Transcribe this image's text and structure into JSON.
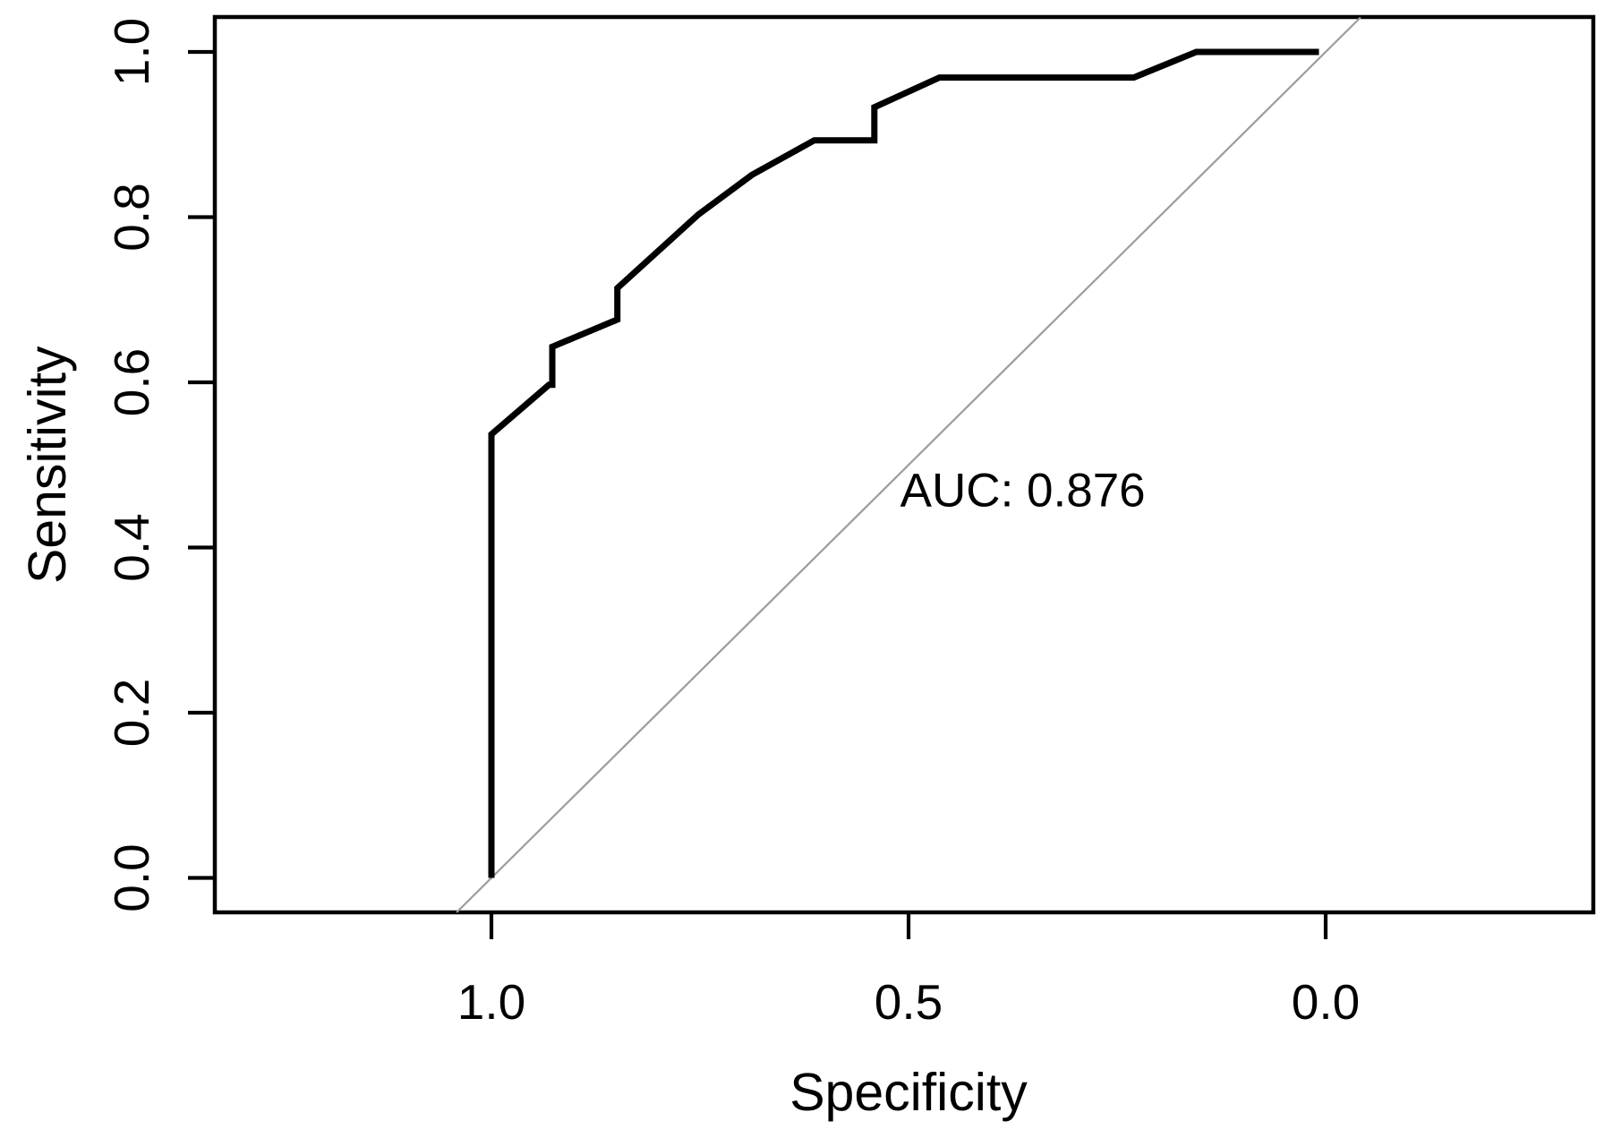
{
  "figure": {
    "background": "#ffffff",
    "foreground": "#000000",
    "reference_line_color": "#9c9c9c"
  },
  "chart_data": {
    "type": "line",
    "title": "",
    "xlabel": "Specificity",
    "ylabel": "Sensitivity",
    "grid": false,
    "legend": false,
    "x_axis": {
      "label": "Specificity",
      "ticks": [
        1.0,
        0.5,
        0.0
      ],
      "tick_labels": [
        "1.0",
        "0.5",
        "0.0"
      ],
      "range": [
        1.0,
        0.0
      ],
      "reversed": true
    },
    "y_axis": {
      "label": "Sensitivity",
      "ticks": [
        0.0,
        0.2,
        0.4,
        0.6,
        0.8,
        1.0
      ],
      "tick_labels": [
        "0.0",
        "0.2",
        "0.4",
        "0.6",
        "0.8",
        "1.0"
      ],
      "range": [
        0.0,
        1.0
      ],
      "tick_label_rotation": -90
    },
    "annotation": {
      "text": "AUC: 0.876",
      "auc_value": 0.876,
      "position": {
        "specificity": 0.51,
        "sensitivity": 0.45
      }
    },
    "series": [
      {
        "name": "roc-curve",
        "color": "#000000",
        "width": 7,
        "points": [
          [
            1.0,
            0.0
          ],
          [
            1.0,
            0.537
          ],
          [
            0.931,
            0.597
          ],
          [
            0.927,
            0.597
          ],
          [
            0.927,
            0.643
          ],
          [
            0.849,
            0.676
          ],
          [
            0.849,
            0.714
          ],
          [
            0.752,
            0.803
          ],
          [
            0.688,
            0.851
          ],
          [
            0.613,
            0.893
          ],
          [
            0.541,
            0.893
          ],
          [
            0.541,
            0.933
          ],
          [
            0.463,
            0.969
          ],
          [
            0.23,
            0.969
          ],
          [
            0.155,
            1.0
          ],
          [
            0.008,
            1.0
          ]
        ]
      },
      {
        "name": "chance-line",
        "color": "#9c9c9c",
        "width": 2.2,
        "points": [
          [
            1.0417,
            -0.0417
          ],
          [
            -0.0417,
            1.0417
          ]
        ]
      }
    ]
  }
}
